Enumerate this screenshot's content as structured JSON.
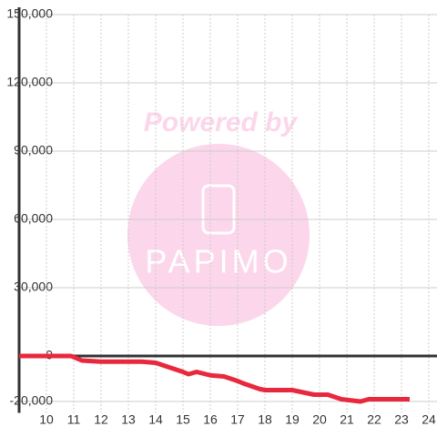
{
  "chart_data": {
    "type": "line",
    "watermark": {
      "top": "Powered by",
      "logo": "PAPIMO"
    },
    "xlim": [
      9,
      24.3
    ],
    "xticks": [
      10,
      11,
      12,
      13,
      14,
      15,
      16,
      17,
      18,
      19,
      20,
      21,
      22,
      23,
      24
    ],
    "ylim": [
      -25000,
      150000
    ],
    "yticks": [
      {
        "value": -20000,
        "label": "-20,000"
      },
      0,
      {
        "value": 30000,
        "label": "30,000"
      },
      {
        "value": 60000,
        "label": "60,000"
      },
      {
        "value": 90000,
        "label": "90,000"
      },
      {
        "value": 120000,
        "label": "120,000"
      },
      {
        "value": 150000,
        "label": "150,000"
      }
    ],
    "grid": true,
    "series": [
      {
        "color": "#e8283c",
        "x": [
          9,
          10.9,
          11.3,
          12,
          13,
          13.5,
          14,
          14.5,
          15,
          15.2,
          15.5,
          16,
          16.5,
          17,
          17.2,
          17.8,
          18,
          19,
          19.8,
          20.3,
          20.8,
          21.5,
          21.8,
          23.3
        ],
        "values": [
          0,
          0,
          -2000,
          -2500,
          -2500,
          -2500,
          -3000,
          -5000,
          -7000,
          -8000,
          -7000,
          -8500,
          -9000,
          -11000,
          -12000,
          -14500,
          -15000,
          -15000,
          -17000,
          -17000,
          -19000,
          -20000,
          -19000,
          -19000
        ]
      }
    ]
  }
}
